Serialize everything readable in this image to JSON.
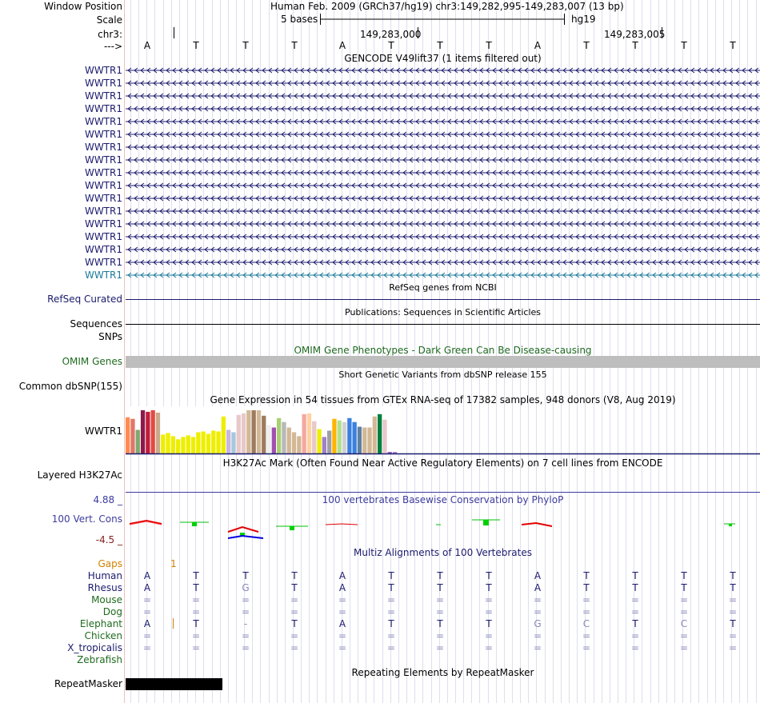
{
  "header": {
    "window_position_label": "Window Position",
    "window_position_text": "Human Feb. 2009 (GRCh37/hg19)   chr3:149,282,995-149,283,007 (13 bp)",
    "scale_label": "Scale",
    "scale_text": "5 bases",
    "assembly": "hg19",
    "chrom_label": "chr3:",
    "coord1": "149,283,000",
    "coord2": "149,283,005",
    "strand_label": "--->",
    "bases": [
      "A",
      "T",
      "T",
      "T",
      "A",
      "T",
      "T",
      "T",
      "A",
      "T",
      "T",
      "T",
      "T"
    ]
  },
  "gencode": {
    "title": "GENCODE V49lift37 (1 items filtered out)",
    "gene_label": "WWTR1",
    "rows": 17,
    "highlight_color": "#1a7a9a",
    "color": "#1b1b6e"
  },
  "refseq": {
    "title": "RefSeq genes from NCBI",
    "label": "RefSeq Curated"
  },
  "publications": {
    "title": "Publications: Sequences in Scientific Articles",
    "label1": "Sequences",
    "label2": "SNPs"
  },
  "omim": {
    "title": "OMIM Gene Phenotypes - Dark Green Can Be Disease-causing",
    "label": "OMIM Genes",
    "color": "#1f6a1f"
  },
  "dbsnp": {
    "title": "Short Genetic Variants from dbSNP release 155",
    "label": "Common dbSNP(155)"
  },
  "gtex": {
    "title": "Gene Expression in 54 tissues from GTEx RNA-seq of 17382 samples, 948 donors (V8, Aug 2019)",
    "label": "WWTR1",
    "values": [
      46,
      44,
      30,
      55,
      53,
      55,
      52,
      24,
      26,
      22,
      18,
      21,
      23,
      21,
      27,
      28,
      25,
      29,
      28,
      47,
      30,
      27,
      49,
      51,
      55,
      55,
      55,
      48,
      36,
      33,
      45,
      40,
      33,
      27,
      22,
      50,
      51,
      41,
      31,
      21,
      29,
      44,
      42,
      40,
      45,
      40,
      34,
      33,
      33,
      47,
      50,
      43,
      2,
      2
    ],
    "colors": [
      "#ff8c4e",
      "#e3746a",
      "#7fa86e",
      "#8a1a4a",
      "#c11c3e",
      "#e4493f",
      "#c9a98a",
      "#eeee00",
      "#eeee00",
      "#eeee00",
      "#eeee00",
      "#eeee00",
      "#eeee00",
      "#eeee00",
      "#eeee00",
      "#eeee00",
      "#eeee00",
      "#eeee00",
      "#eeee00",
      "#eeee00",
      "#c8b5e0",
      "#a6c8dc",
      "#e8c8c8",
      "#e8c8c8",
      "#d3b896",
      "#9e7b5f",
      "#d3b896",
      "#9e7b5f",
      "#eeeeee",
      "#a050b0",
      "#a8d070",
      "#b8b8b8",
      "#d3b896",
      "#d3b896",
      "#d3b896",
      "#f5a7a0",
      "#ffd2a0",
      "#e8c8c8",
      "#eeee00",
      "#a080c8",
      "#a0a0a0",
      "#ffb400",
      "#b0e090",
      "#d0d0d0",
      "#3a80e0",
      "#3a80e0",
      "#6080a0",
      "#d3b896",
      "#d3b896",
      "#d3b896",
      "#008040",
      "#e8c8c8",
      "#9060c0",
      "#b080d0"
    ]
  },
  "h3k27ac": {
    "title": "H3K27Ac Mark (Often Found Near Active Regulatory Elements) on 7 cell lines from ENCODE",
    "label": "Layered H3K27Ac"
  },
  "phylop": {
    "title": "100 vertebrates Basewise Conservation by PhyloP",
    "label": "100 Vert. Cons",
    "max_label": "4.88 _",
    "min_label": "-4.5 _",
    "color": "#3c3c9e",
    "min_color": "#8b2020"
  },
  "multiz": {
    "title": "Multiz Alignments of 100 Vertebrates",
    "gaps_label": "Gaps",
    "gap_count": "1",
    "gaps_color": "#d08000",
    "species": [
      {
        "name": "Human",
        "color": "#1b1b6e",
        "bases": [
          "A",
          "T",
          "T",
          "T",
          "A",
          "T",
          "T",
          "T",
          "A",
          "T",
          "T",
          "T",
          "T"
        ]
      },
      {
        "name": "Rhesus",
        "color": "#1b1b6e",
        "bases": [
          "A",
          "T",
          "G",
          "T",
          "A",
          "T",
          "T",
          "T",
          "A",
          "T",
          "T",
          "T",
          "T"
        ]
      },
      {
        "name": "Mouse",
        "color": "#1f6a1f",
        "bases": [
          "=",
          "=",
          "=",
          "=",
          "=",
          "=",
          "=",
          "=",
          "=",
          "=",
          "=",
          "=",
          "="
        ]
      },
      {
        "name": "Dog",
        "color": "#1f6a1f",
        "bases": [
          "=",
          "=",
          "=",
          "=",
          "=",
          "=",
          "=",
          "=",
          "=",
          "=",
          "=",
          "=",
          "="
        ]
      },
      {
        "name": "Elephant",
        "color": "#1f6a1f",
        "bases": [
          "A",
          "T",
          "-",
          "T",
          "A",
          "T",
          "T",
          "T",
          "G",
          "C",
          "T",
          "C",
          "T"
        ]
      },
      {
        "name": "Chicken",
        "color": "#1f6a1f",
        "bases": [
          "=",
          "=",
          "=",
          "=",
          "=",
          "=",
          "=",
          "=",
          "=",
          "=",
          "=",
          "=",
          "="
        ]
      },
      {
        "name": "X_tropicalis",
        "color": "#1b1b6e",
        "bases": [
          "=",
          "=",
          "=",
          "=",
          "=",
          "=",
          "=",
          "=",
          "=",
          "=",
          "=",
          "=",
          "="
        ]
      },
      {
        "name": "Zebrafish",
        "color": "#1f6a1f",
        "bases": []
      }
    ]
  },
  "repeatmasker": {
    "title": "Repeating Elements by RepeatMasker",
    "label": "RepeatMasker"
  }
}
